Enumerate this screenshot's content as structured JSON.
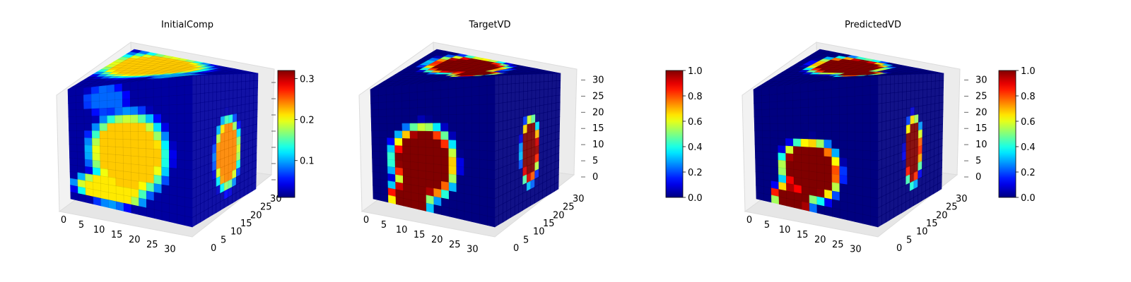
{
  "chart_data": [
    {
      "type": "heatmap",
      "render": "3d-voxel-cube",
      "title": "InitialComp",
      "colormap": "jet",
      "x_ticks": [
        "0",
        "5",
        "10",
        "15",
        "20",
        "25",
        "30"
      ],
      "y_ticks": [
        "0",
        "5",
        "10",
        "15",
        "20",
        "25",
        "30"
      ],
      "z_ticks": [],
      "colorbar": {
        "ticks": [
          "0.1",
          "0.2",
          "0.3"
        ],
        "tick_values": [
          0.1,
          0.2,
          0.3
        ],
        "range": [
          0.01,
          0.32
        ]
      },
      "front_blobs": [
        {
          "u": 0.48,
          "v": 0.55,
          "ru": 0.33,
          "rv": 0.33,
          "value": 0.22
        },
        {
          "u": 0.33,
          "v": 0.85,
          "ru": 0.3,
          "rv": 0.12,
          "value": 0.21
        },
        {
          "u": 0.3,
          "v": 0.12,
          "ru": 0.18,
          "rv": 0.12,
          "value": 0.08
        }
      ],
      "top_blobs": [
        {
          "u": 0.35,
          "v": 0.35,
          "ru": 0.4,
          "rv": 0.4,
          "value": 0.22
        },
        {
          "u": 0.75,
          "v": 0.75,
          "ru": 0.2,
          "rv": 0.2,
          "value": 0.1
        }
      ],
      "side_blobs": [
        {
          "u": 0.55,
          "v": 0.6,
          "ru": 0.2,
          "rv": 0.28,
          "value": 0.24
        }
      ],
      "base_value": 0.02
    },
    {
      "type": "heatmap",
      "render": "3d-voxel-cube",
      "title": "TargetVD",
      "colormap": "jet",
      "x_ticks": [
        "0",
        "5",
        "10",
        "15",
        "20",
        "25",
        "30"
      ],
      "y_ticks": [
        "0",
        "5",
        "10",
        "15",
        "20",
        "25",
        "30"
      ],
      "z_ticks": [
        "0",
        "5",
        "10",
        "15",
        "20",
        "25",
        "30"
      ],
      "colorbar": {
        "ticks": [
          "0.0",
          "0.2",
          "0.4",
          "0.6",
          "0.8",
          "1.0"
        ],
        "tick_values": [
          0,
          0.2,
          0.4,
          0.6,
          0.8,
          1.0
        ],
        "range": [
          0,
          1
        ]
      },
      "front_blobs": [
        {
          "u": 0.42,
          "v": 0.62,
          "ru": 0.27,
          "rv": 0.3,
          "value": 1.0
        },
        {
          "u": 0.3,
          "v": 0.92,
          "ru": 0.18,
          "rv": 0.12,
          "value": 1.0
        }
      ],
      "top_blobs": [
        {
          "u": 0.4,
          "v": 0.3,
          "ru": 0.3,
          "rv": 0.3,
          "value": 1.0
        },
        {
          "u": 0.62,
          "v": 0.58,
          "ru": 0.18,
          "rv": 0.18,
          "value": 1.0
        }
      ],
      "side_blobs": [
        {
          "u": 0.55,
          "v": 0.58,
          "ru": 0.14,
          "rv": 0.26,
          "value": 1.0
        }
      ],
      "base_value": 0.0
    },
    {
      "type": "heatmap",
      "render": "3d-voxel-cube",
      "title": "PredictedVD",
      "colormap": "jet",
      "x_ticks": [
        "0",
        "5",
        "10",
        "15",
        "20",
        "25",
        "30"
      ],
      "y_ticks": [
        "0",
        "5",
        "10",
        "15",
        "20",
        "25",
        "30"
      ],
      "z_ticks": [
        "0",
        "5",
        "10",
        "15",
        "20",
        "25",
        "30"
      ],
      "colorbar": {
        "ticks": [
          "0.0",
          "0.2",
          "0.4",
          "0.6",
          "0.8",
          "1.0"
        ],
        "tick_values": [
          0,
          0.2,
          0.4,
          0.6,
          0.8,
          1.0
        ],
        "range": [
          0,
          1
        ]
      },
      "front_blobs": [
        {
          "u": 0.45,
          "v": 0.68,
          "ru": 0.25,
          "rv": 0.24,
          "value": 1.0
        },
        {
          "u": 0.3,
          "v": 0.92,
          "ru": 0.18,
          "rv": 0.1,
          "value": 1.0
        }
      ],
      "top_blobs": [
        {
          "u": 0.4,
          "v": 0.32,
          "ru": 0.28,
          "rv": 0.3,
          "value": 1.0
        },
        {
          "u": 0.63,
          "v": 0.58,
          "ru": 0.17,
          "rv": 0.17,
          "value": 1.0
        }
      ],
      "side_blobs": [
        {
          "u": 0.55,
          "v": 0.58,
          "ru": 0.13,
          "rv": 0.27,
          "value": 1.0
        }
      ],
      "base_value": 0.0
    }
  ]
}
